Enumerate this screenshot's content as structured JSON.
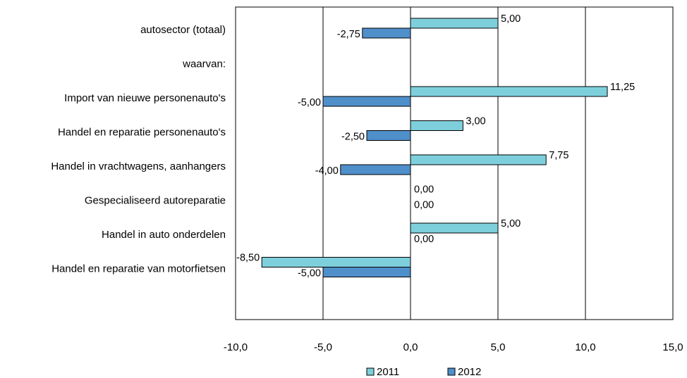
{
  "chart_data": {
    "type": "bar",
    "orientation": "horizontal",
    "categories": [
      "autosector (totaal)",
      "waarvan:",
      "Import van nieuwe personenauto's",
      "Handel en reparatie personenauto's",
      "Handel in vrachtwagens, aanhangers",
      "Gespecialiseerd autoreparatie",
      "Handel in auto onderdelen",
      "Handel en reparatie van motorfietsen"
    ],
    "series": [
      {
        "name": "2011",
        "color": "#7ecfdc",
        "values": [
          5.0,
          null,
          11.25,
          3.0,
          7.75,
          0.0,
          5.0,
          -8.5
        ],
        "labels": [
          "5,00",
          "",
          "11,25",
          "3,00",
          "7,75",
          "0,00",
          "5,00",
          "-8,50"
        ]
      },
      {
        "name": "2012",
        "color": "#4f8fca",
        "values": [
          -2.75,
          null,
          -5.0,
          -2.5,
          -4.0,
          0.0,
          0.0,
          -5.0
        ],
        "labels": [
          "-2,75",
          "",
          "-5,00",
          "-2,50",
          "-4,00",
          "0,00",
          "0,00",
          "-5,00"
        ]
      }
    ],
    "xlim": [
      -10,
      15
    ],
    "xticks": [
      -10,
      -5,
      0,
      5,
      10,
      15
    ],
    "xtick_labels": [
      "-10,0",
      "-5,0",
      "0,0",
      "5,0",
      "10,0",
      "15,0"
    ],
    "grid": "vertical",
    "legend": "bottom",
    "title": "",
    "xlabel": "",
    "ylabel": ""
  }
}
